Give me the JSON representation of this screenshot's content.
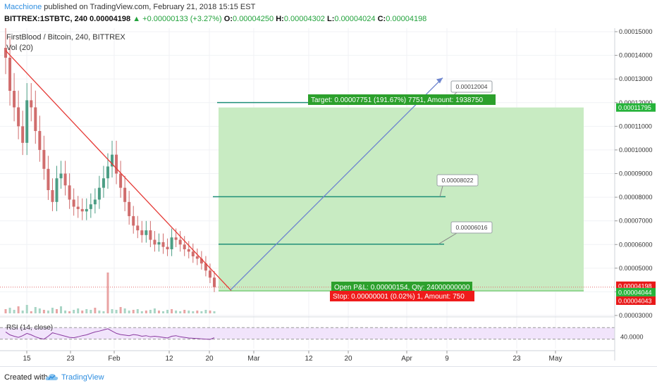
{
  "header": {
    "author": "Macchione",
    "published_text": "published on TradingView.com, February 21, 2018 15:15 EST",
    "symbol_line": "BITTREX:1STBTC, 240",
    "last_price": "0.00004198",
    "change": "+0.00000133 (+3.27%)",
    "open_label": "O:",
    "open": "0.00004250",
    "high_label": "H:",
    "high": "0.00004302",
    "low_label": "L:",
    "low": "0.00004024",
    "close_label": "C:",
    "close": "0.00004198"
  },
  "legend": {
    "title": "FirstBlood / Bitcoin, 240, BITTREX",
    "volume": "Vol (20)",
    "rsi": "RSI (14, close)"
  },
  "footer": {
    "created_with": "Created with",
    "brand": "TradingView"
  },
  "colors": {
    "up": "#4c9e85",
    "down": "#d06d6d",
    "trendline": "#e53935",
    "projection": "#6f86cf",
    "target_zone": "#c8ebc2",
    "level_line": "#1f8f78",
    "label_green": "#2ca02c",
    "label_red": "#ef1b1b",
    "rsi_bg": "#f1e4fb",
    "rsi_line": "#8a3aa0"
  },
  "chart_data": {
    "type": "candlestick",
    "price_axis": {
      "min": 3e-05,
      "max": 0.00015,
      "ticks": [
        "0.00015000",
        "0.00014000",
        "0.00013000",
        "0.00012000",
        "0.00011000",
        "0.00010000",
        "0.00009000",
        "0.00008000",
        "0.00007000",
        "0.00006000",
        "0.00005000",
        "0.00004000",
        "0.00003000"
      ]
    },
    "time_axis": {
      "ticks": [
        "15",
        "23",
        "Feb",
        "12",
        "20",
        "Mar",
        "12",
        "20",
        "Apr",
        "9",
        "23",
        "May"
      ]
    },
    "price_labels": [
      {
        "text": "0.00011795",
        "value": 0.00011795,
        "style": "green"
      },
      {
        "text": "0.00004198",
        "value": 4.198e-05,
        "style": "red"
      },
      {
        "text": "0.00004044",
        "value": 4.044e-05,
        "style": "green"
      },
      {
        "text": "0.00004043",
        "value": 4.043e-05,
        "style": "red"
      }
    ],
    "callouts": [
      {
        "text": "0.00012004",
        "value": 0.00012004
      },
      {
        "text": "0.00008022",
        "value": 8.022e-05
      },
      {
        "text": "0.00006016",
        "value": 6.016e-05
      }
    ],
    "horizontal_levels": [
      0.00012004,
      8.022e-05,
      6.016e-05
    ],
    "target_label": "Target: 0.00007751 (191.67%) 7751, Amount: 1938750",
    "open_label": "Open P&L: 0.00000154, Qty: 24000000000",
    "stop_label": "Stop: 0.00000001 (0.02%) 1, Amount: 750",
    "position": {
      "entry": 4.044e-05,
      "target": 0.00011795
    },
    "rsi_axis_label": "40.0000",
    "rsi_levels": [
      70,
      30
    ],
    "candles_close": [
      0.000139,
      0.000125,
      0.000118,
      0.00011,
      0.000103,
      0.000121,
      0.000118,
      0.000108,
      0.0001,
      9.2e-05,
      8.3e-05,
      7.8e-05,
      8.8e-05,
      9e-05,
      8.5e-05,
      7.9e-05,
      7.6e-05,
      7.5e-05,
      7.4e-05,
      7.5e-05,
      7.7e-05,
      7.9e-05,
      8.4e-05,
      8.8e-05,
      9.3e-05,
      9.8e-05,
      9e-05,
      8.4e-05,
      7.8e-05,
      7.2e-05,
      6.8e-05,
      6.6e-05,
      6.4e-05,
      6.6e-05,
      6.2e-05,
      6e-05,
      6.1e-05,
      5.9e-05,
      5.8e-05,
      6.3e-05,
      6.2e-05,
      6e-05,
      5.8e-05,
      5.7e-05,
      5.5e-05,
      5.4e-05,
      5.2e-05,
      4.9e-05,
      4.6e-05,
      4.2e-05
    ],
    "rsi_values": [
      55,
      45,
      40,
      36,
      42,
      50,
      45,
      38,
      33,
      30,
      40,
      52,
      48,
      44,
      40,
      36,
      35,
      38,
      42,
      45,
      50,
      55,
      58,
      62,
      66,
      58,
      50,
      46,
      44,
      42,
      46,
      44,
      40,
      42,
      38,
      40,
      38,
      36,
      34,
      40,
      42,
      38,
      36,
      34,
      33,
      32,
      31,
      30,
      29,
      35
    ]
  }
}
